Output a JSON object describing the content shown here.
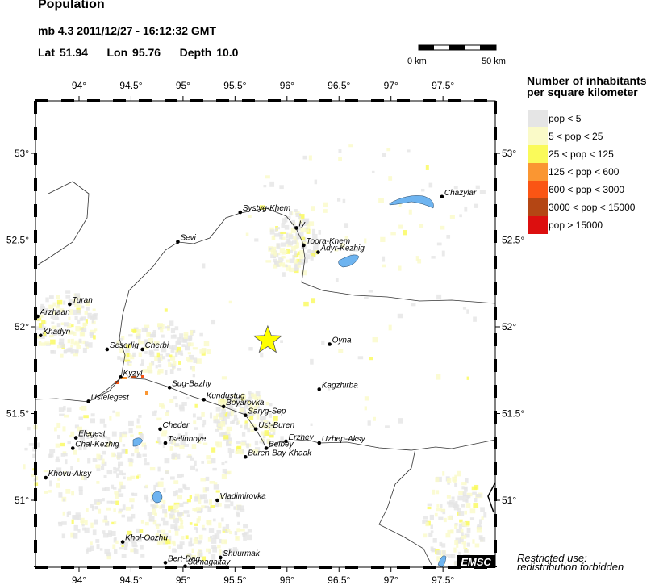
{
  "header": {
    "title": "Population",
    "event": "mb 4.3  2011/12/27 - 16:12:32 GMT",
    "lat_label": "Lat",
    "lat": "51.94",
    "lon_label": "Lon",
    "lon": "95.76",
    "depth_label": "Depth",
    "depth": "10.0"
  },
  "scale_bar": {
    "start": "0 km",
    "end": "50 km"
  },
  "map": {
    "extent": {
      "lon_min": 93.58,
      "lon_max": 98.0,
      "lat_min": 50.61,
      "lat_max": 53.3
    },
    "lon_ticks": [
      "94°",
      "94.5°",
      "95°",
      "95.5°",
      "96°",
      "96.5°",
      "97°",
      "97.5°"
    ],
    "lon_tick_values": [
      94,
      94.5,
      95,
      95.5,
      96,
      96.5,
      97,
      97.5
    ],
    "lat_ticks": [
      "53°",
      "52.5°",
      "52°",
      "51.5°",
      "51°"
    ],
    "lat_tick_values": [
      53,
      52.5,
      52,
      51.5,
      51
    ],
    "epicenter": {
      "lat": 51.94,
      "lon": 95.76,
      "color": "#ffff00"
    },
    "water_color": "#6eb4f0",
    "cities": [
      {
        "name": "Chazylar",
        "lon": 97.49,
        "lat": 52.75
      },
      {
        "name": "Systyg-Khem",
        "lon": 95.55,
        "lat": 52.66
      },
      {
        "name": "Iy",
        "lon": 96.09,
        "lat": 52.57
      },
      {
        "name": "Sevi",
        "lon": 94.95,
        "lat": 52.49
      },
      {
        "name": "Toora-Khem",
        "lon": 96.16,
        "lat": 52.47
      },
      {
        "name": "Adyr-Kezhig",
        "lon": 96.3,
        "lat": 52.43
      },
      {
        "name": "Turan",
        "lon": 93.91,
        "lat": 52.13
      },
      {
        "name": "Arzhaan",
        "lon": 93.6,
        "lat": 52.06
      },
      {
        "name": "Khadyn",
        "lon": 93.63,
        "lat": 51.95
      },
      {
        "name": "Seserlig",
        "lon": 94.27,
        "lat": 51.87
      },
      {
        "name": "Cherbi",
        "lon": 94.61,
        "lat": 51.87
      },
      {
        "name": "Oyna",
        "lon": 96.41,
        "lat": 51.9
      },
      {
        "name": "Kyzyl",
        "lon": 94.4,
        "lat": 51.71
      },
      {
        "name": "Sug-Bazhy",
        "lon": 94.87,
        "lat": 51.65
      },
      {
        "name": "Kagzhirba",
        "lon": 96.31,
        "lat": 51.64
      },
      {
        "name": "Ustelegest",
        "lon": 94.09,
        "lat": 51.57
      },
      {
        "name": "Kundustug",
        "lon": 95.2,
        "lat": 51.58
      },
      {
        "name": "Boyarovka",
        "lon": 95.39,
        "lat": 51.54
      },
      {
        "name": "Saryg-Sep",
        "lon": 95.6,
        "lat": 51.49
      },
      {
        "name": "Ust-Buren",
        "lon": 95.7,
        "lat": 51.41
      },
      {
        "name": "Cheder",
        "lon": 94.78,
        "lat": 51.41
      },
      {
        "name": "Elegest",
        "lon": 93.97,
        "lat": 51.36
      },
      {
        "name": "Tselinnoye",
        "lon": 94.83,
        "lat": 51.33
      },
      {
        "name": "Chal-Kezhig",
        "lon": 93.94,
        "lat": 51.3
      },
      {
        "name": "Erzhey",
        "lon": 95.99,
        "lat": 51.34
      },
      {
        "name": "Uzhep-Aksy",
        "lon": 96.31,
        "lat": 51.33
      },
      {
        "name": "Belbey",
        "lon": 95.8,
        "lat": 51.3
      },
      {
        "name": "Buren-Bay-Khaak",
        "lon": 95.6,
        "lat": 51.25
      },
      {
        "name": "Khovu-Aksy",
        "lon": 93.68,
        "lat": 51.13
      },
      {
        "name": "Vladimirovka",
        "lon": 95.33,
        "lat": 51.0
      },
      {
        "name": "Khol-Oozhu",
        "lon": 94.42,
        "lat": 50.76
      },
      {
        "name": "Bert-Dag",
        "lon": 94.83,
        "lat": 50.64
      },
      {
        "name": "Samagaltay",
        "lon": 95.02,
        "lat": 50.62
      },
      {
        "name": "Shuurmak",
        "lon": 95.36,
        "lat": 50.67
      }
    ]
  },
  "legend": {
    "title_line1": "Number of inhabitants",
    "title_line2": "per square kilometer",
    "items": [
      {
        "label": "pop < 5",
        "color": "#e5e5e5"
      },
      {
        "label": "5 < pop < 25",
        "color": "#fafac8"
      },
      {
        "label": "25 < pop < 125",
        "color": "#fafa5a"
      },
      {
        "label": "125 < pop < 600",
        "color": "#fa9632"
      },
      {
        "label": "600 < pop < 3000",
        "color": "#fa5514"
      },
      {
        "label": "3000 < pop < 15000",
        "color": "#b44614"
      },
      {
        "label": "pop > 15000",
        "color": "#dc0f0f"
      }
    ]
  },
  "logo": "EMSC",
  "footer": {
    "line1": "Restricted use:",
    "line2": "redistribution forbidden"
  }
}
